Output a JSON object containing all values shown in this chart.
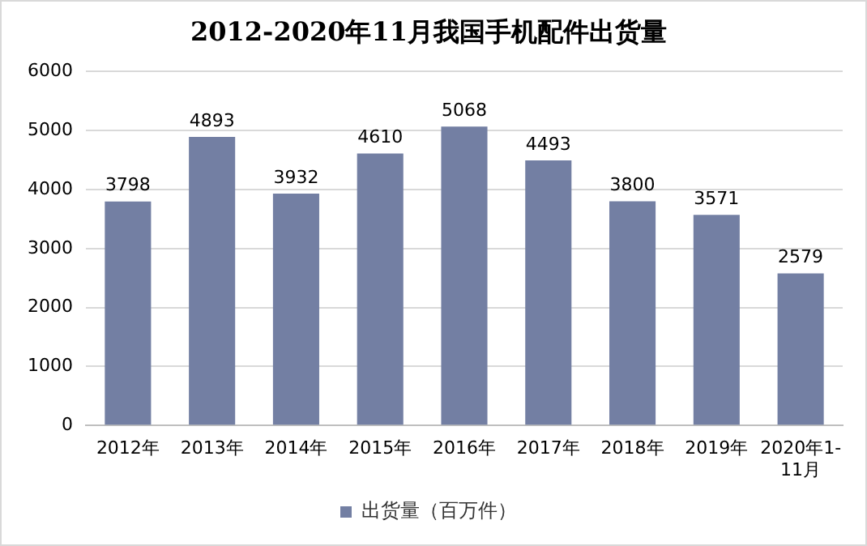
{
  "chart_data": {
    "type": "bar",
    "title": "2012-2020年11月我国手机配件出货量",
    "categories": [
      "2012年",
      "2013年",
      "2014年",
      "2015年",
      "2016年",
      "2017年",
      "2018年",
      "2019年",
      "2020年1-11月"
    ],
    "series": [
      {
        "name": "出货量（百万件）",
        "color": "#737fa3",
        "values": [
          3798,
          4893,
          3932,
          4610,
          5068,
          4493,
          3800,
          3571,
          2579
        ]
      }
    ],
    "ylim": [
      0,
      6000
    ],
    "yticks": [
      0,
      1000,
      2000,
      3000,
      4000,
      5000,
      6000
    ],
    "grid": "y",
    "legend": "bottom",
    "data_labels": true
  }
}
